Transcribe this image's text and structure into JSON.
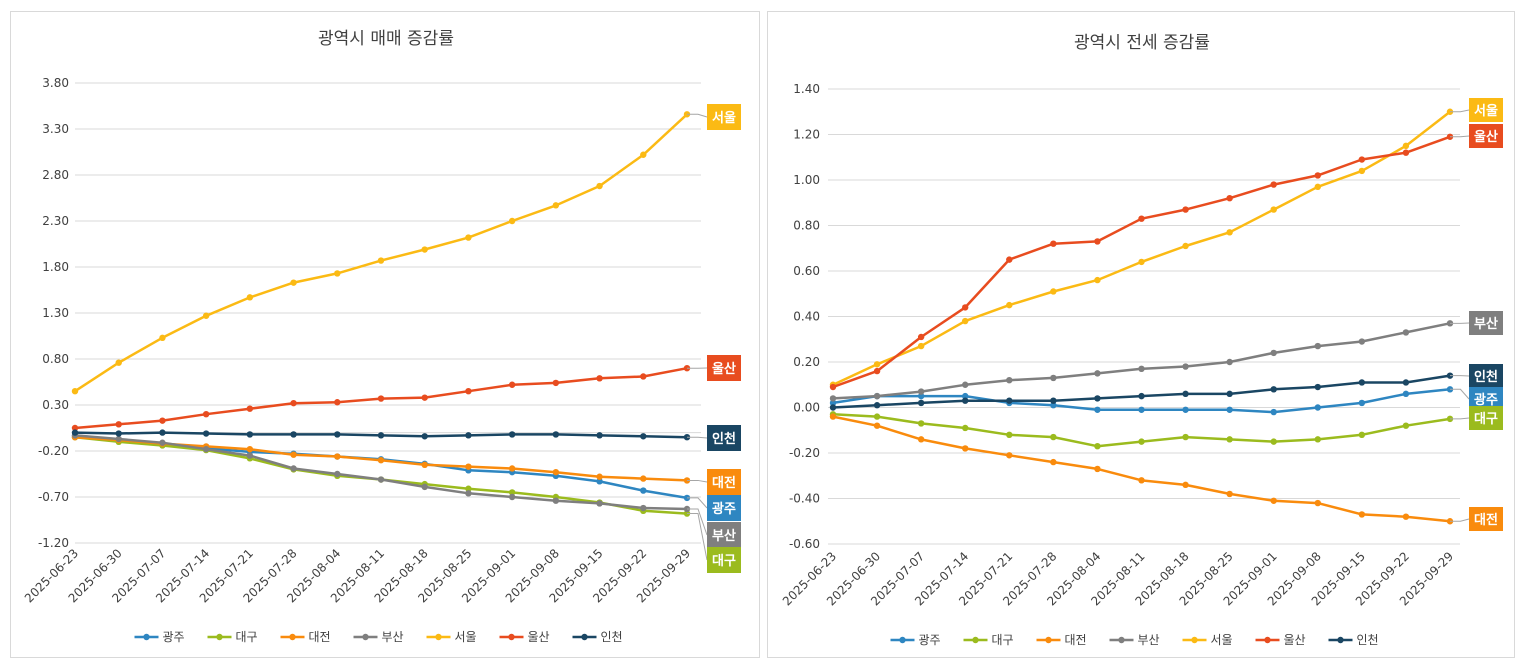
{
  "chart_data": [
    {
      "id": "left",
      "type": "line",
      "title": "광역시 매매 증감률",
      "xlabel": "",
      "ylabel": "",
      "ylim": [
        -1.2,
        3.8
      ],
      "yticks": [
        "3.80",
        "3.30",
        "2.80",
        "2.30",
        "1.80",
        "1.30",
        "0.80",
        "0.30",
        "-0.20",
        "-0.70",
        "-1.20"
      ],
      "ytick_values": [
        3.8,
        3.3,
        2.8,
        2.3,
        1.8,
        1.3,
        0.8,
        0.3,
        -0.2,
        -0.7,
        -1.2
      ],
      "grid": true,
      "legend": "bottom",
      "categories": [
        "2025-06-23",
        "2025-06-30",
        "2025-07-07",
        "2025-07-14",
        "2025-07-21",
        "2025-07-28",
        "2025-08-04",
        "2025-08-11",
        "2025-08-18",
        "2025-08-25",
        "2025-09-01",
        "2025-09-08",
        "2025-09-15",
        "2025-09-22",
        "2025-09-29"
      ],
      "series": [
        {
          "name": "광주",
          "color": "#2e86c1",
          "values": [
            -0.03,
            -0.08,
            -0.12,
            -0.17,
            -0.21,
            -0.23,
            -0.26,
            -0.29,
            -0.34,
            -0.41,
            -0.43,
            -0.47,
            -0.53,
            -0.63,
            -0.71
          ]
        },
        {
          "name": "대구",
          "color": "#9bbb1e",
          "values": [
            -0.05,
            -0.1,
            -0.14,
            -0.19,
            -0.28,
            -0.4,
            -0.47,
            -0.51,
            -0.56,
            -0.61,
            -0.65,
            -0.7,
            -0.76,
            -0.85,
            -0.88
          ]
        },
        {
          "name": "대전",
          "color": "#f98b0d",
          "values": [
            -0.05,
            -0.08,
            -0.12,
            -0.15,
            -0.18,
            -0.24,
            -0.26,
            -0.3,
            -0.35,
            -0.37,
            -0.39,
            -0.43,
            -0.48,
            -0.5,
            -0.52
          ]
        },
        {
          "name": "부산",
          "color": "#7f7f7f",
          "values": [
            -0.03,
            -0.07,
            -0.11,
            -0.18,
            -0.25,
            -0.39,
            -0.45,
            -0.51,
            -0.59,
            -0.66,
            -0.7,
            -0.74,
            -0.77,
            -0.82,
            -0.83
          ]
        },
        {
          "name": "서울",
          "color": "#fbba14",
          "values": [
            0.45,
            0.76,
            1.03,
            1.27,
            1.47,
            1.63,
            1.73,
            1.87,
            1.99,
            2.12,
            2.3,
            2.47,
            2.68,
            3.02,
            3.46
          ]
        },
        {
          "name": "울산",
          "color": "#e84c1f",
          "values": [
            0.05,
            0.09,
            0.13,
            0.2,
            0.26,
            0.32,
            0.33,
            0.37,
            0.38,
            0.45,
            0.52,
            0.54,
            0.59,
            0.61,
            0.7
          ]
        },
        {
          "name": "인천",
          "color": "#1a4663",
          "values": [
            0.0,
            -0.01,
            0.0,
            -0.01,
            -0.02,
            -0.02,
            -0.02,
            -0.03,
            -0.04,
            -0.03,
            -0.02,
            -0.02,
            -0.03,
            -0.04,
            -0.05
          ]
        }
      ],
      "end_labels": [
        {
          "name": "서울",
          "order": 0
        },
        {
          "name": "울산",
          "order": 1
        },
        {
          "name": "인천",
          "order": 2
        },
        {
          "name": "대전",
          "order": 3
        },
        {
          "name": "광주",
          "order": 4
        },
        {
          "name": "부산",
          "order": 5
        },
        {
          "name": "대구",
          "order": 6
        }
      ]
    },
    {
      "id": "right",
      "type": "line",
      "title": "광역시 전세 증감률",
      "xlabel": "",
      "ylabel": "",
      "ylim": [
        -0.6,
        1.4
      ],
      "yticks": [
        "1.40",
        "1.20",
        "1.00",
        "0.80",
        "0.60",
        "0.40",
        "0.20",
        "0.00",
        "-0.20",
        "-0.40",
        "-0.60"
      ],
      "ytick_values": [
        1.4,
        1.2,
        1.0,
        0.8,
        0.6,
        0.4,
        0.2,
        0.0,
        -0.2,
        -0.4,
        -0.6
      ],
      "grid": true,
      "legend": "bottom",
      "categories": [
        "2025-06-23",
        "2025-06-30",
        "2025-07-07",
        "2025-07-14",
        "2025-07-21",
        "2025-07-28",
        "2025-08-04",
        "2025-08-11",
        "2025-08-18",
        "2025-08-25",
        "2025-09-01",
        "2025-09-08",
        "2025-09-15",
        "2025-09-22",
        "2025-09-29"
      ],
      "series": [
        {
          "name": "광주",
          "color": "#2e86c1",
          "values": [
            0.02,
            0.05,
            0.05,
            0.05,
            0.02,
            0.01,
            -0.01,
            -0.01,
            -0.01,
            -0.01,
            -0.02,
            0.0,
            0.02,
            0.06,
            0.08
          ]
        },
        {
          "name": "대구",
          "color": "#9bbb1e",
          "values": [
            -0.03,
            -0.04,
            -0.07,
            -0.09,
            -0.12,
            -0.13,
            -0.17,
            -0.15,
            -0.13,
            -0.14,
            -0.15,
            -0.14,
            -0.12,
            -0.08,
            -0.05
          ]
        },
        {
          "name": "대전",
          "color": "#f98b0d",
          "values": [
            -0.04,
            -0.08,
            -0.14,
            -0.18,
            -0.21,
            -0.24,
            -0.27,
            -0.32,
            -0.34,
            -0.38,
            -0.41,
            -0.42,
            -0.47,
            -0.48,
            -0.5
          ]
        },
        {
          "name": "부산",
          "color": "#7f7f7f",
          "values": [
            0.04,
            0.05,
            0.07,
            0.1,
            0.12,
            0.13,
            0.15,
            0.17,
            0.18,
            0.2,
            0.24,
            0.27,
            0.29,
            0.33,
            0.37
          ]
        },
        {
          "name": "서울",
          "color": "#fbba14",
          "values": [
            0.1,
            0.19,
            0.27,
            0.38,
            0.45,
            0.51,
            0.56,
            0.64,
            0.71,
            0.77,
            0.87,
            0.97,
            1.04,
            1.15,
            1.3
          ]
        },
        {
          "name": "울산",
          "color": "#e84c1f",
          "values": [
            0.09,
            0.16,
            0.31,
            0.44,
            0.65,
            0.72,
            0.73,
            0.83,
            0.87,
            0.92,
            0.98,
            1.02,
            1.09,
            1.12,
            1.19
          ]
        },
        {
          "name": "인천",
          "color": "#1a4663",
          "values": [
            0.0,
            0.01,
            0.02,
            0.03,
            0.03,
            0.03,
            0.04,
            0.05,
            0.06,
            0.06,
            0.08,
            0.09,
            0.11,
            0.11,
            0.14
          ]
        }
      ],
      "end_labels": [
        {
          "name": "서울",
          "order": 0
        },
        {
          "name": "울산",
          "order": 1
        },
        {
          "name": "부산",
          "order": 2
        },
        {
          "name": "인천",
          "order": 3
        },
        {
          "name": "광주",
          "order": 4
        },
        {
          "name": "대구",
          "order": 5
        },
        {
          "name": "대전",
          "order": 6
        }
      ]
    }
  ]
}
